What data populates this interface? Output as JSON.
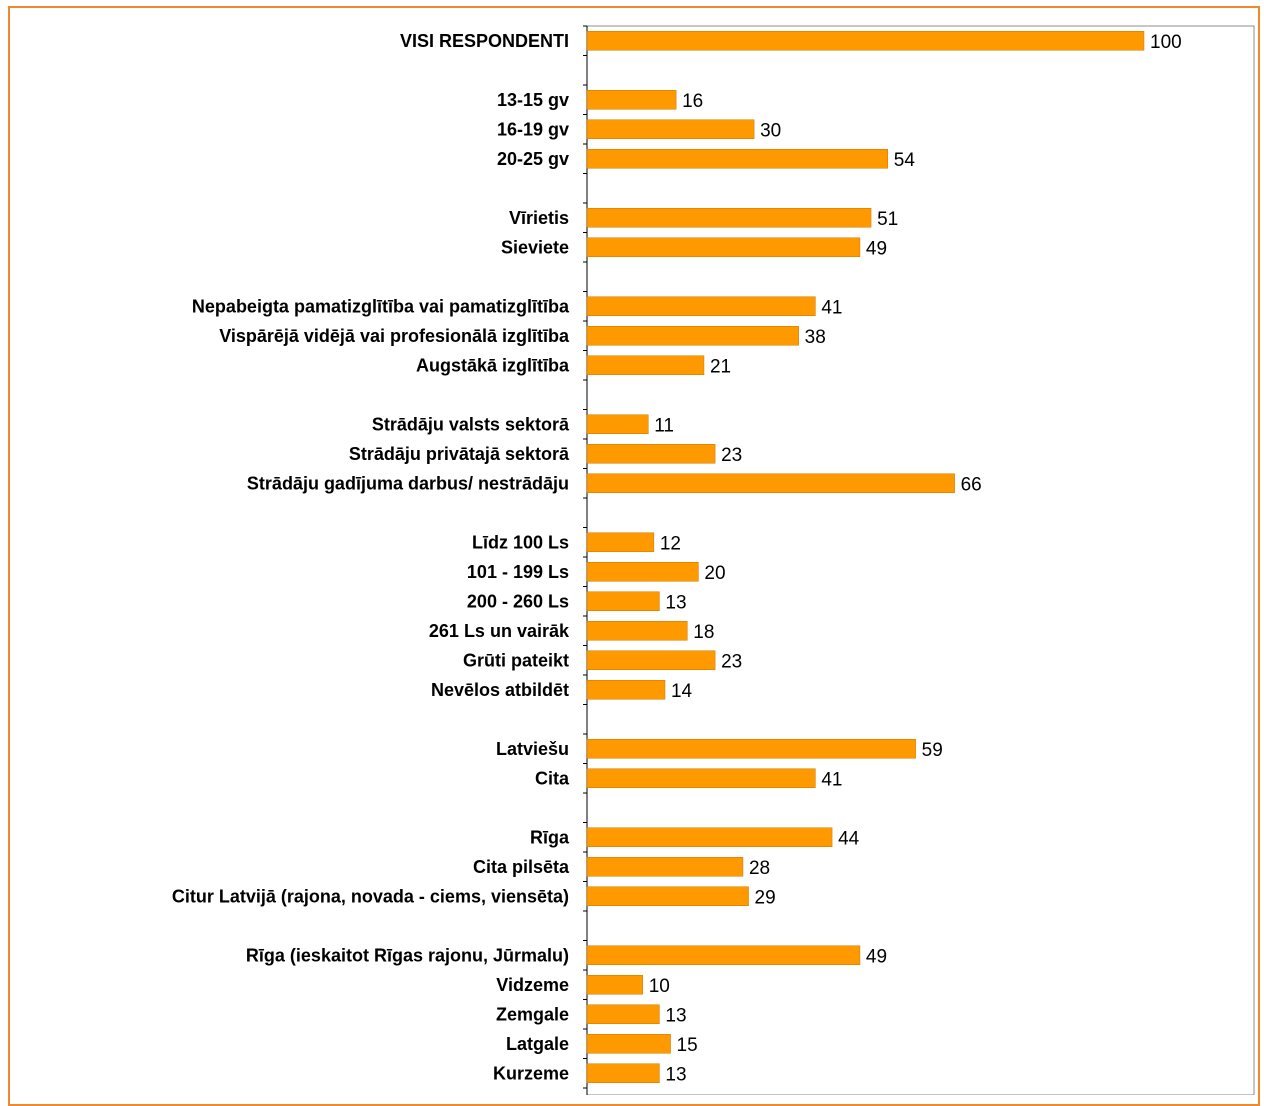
{
  "chart_data": {
    "type": "bar",
    "orientation": "horizontal",
    "categories": [
      "VISI RESPONDENTI",
      "",
      "13-15 gv",
      "16-19 gv",
      "20-25 gv",
      "",
      "Vīrietis",
      "Sieviete",
      "",
      "Nepabeigta pamatizglītība vai pamatizglītība",
      "Vispārējā vidējā vai profesionālā izglītība",
      "Augstākā izglītība",
      "",
      "Strādāju valsts sektorā",
      "Strādāju privātajā sektorā",
      "Strādāju gadījuma darbus/ nestrādāju",
      "",
      "Līdz 100 Ls",
      "101 - 199 Ls",
      "200 - 260 Ls",
      "261 Ls un vairāk",
      "Grūti pateikt",
      "Nevēlos atbildēt",
      "",
      "Latviešu",
      "Cita",
      "",
      "Rīga",
      "Cita pilsēta",
      "Citur Latvijā (rajona, novada - ciems, viensēta)",
      "",
      "Rīga (ieskaitot Rīgas rajonu, Jūrmalu)",
      "Vidzeme",
      "Zemgale",
      "Latgale",
      "Kurzeme"
    ],
    "values": [
      100,
      null,
      16,
      30,
      54,
      null,
      51,
      49,
      null,
      41,
      38,
      21,
      null,
      11,
      23,
      66,
      null,
      12,
      20,
      13,
      18,
      23,
      14,
      null,
      59,
      41,
      null,
      44,
      28,
      29,
      null,
      49,
      10,
      13,
      15,
      13
    ],
    "xlim": [
      0,
      100
    ],
    "grid": false,
    "colors": {
      "bar": "#ff9900",
      "frame": "#f0892e"
    }
  }
}
